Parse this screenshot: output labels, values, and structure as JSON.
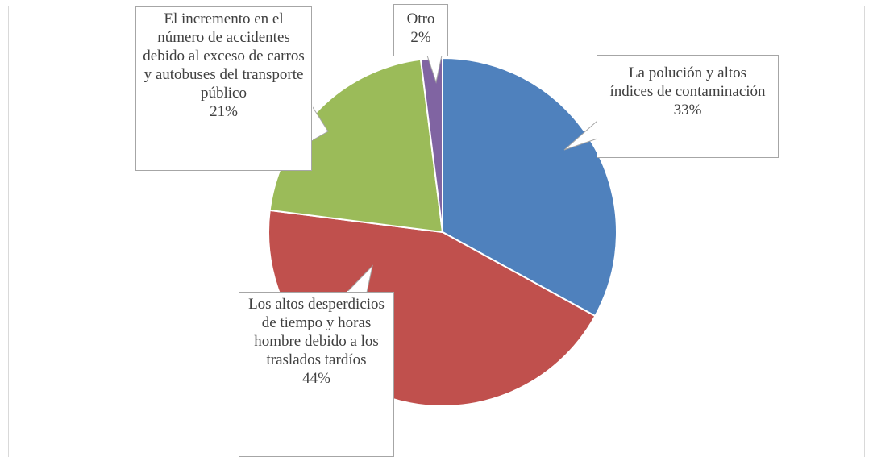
{
  "chart_data": {
    "type": "pie",
    "categories": [
      "La polución y altos índices de contaminación",
      "Los altos desperdicios de tiempo y horas hombre debido a los traslados tardíos",
      "El incremento en el número de accidentes debido al exceso de carros y autobuses del transporte público",
      "Otro"
    ],
    "values": [
      33,
      44,
      21,
      2
    ],
    "value_labels": [
      "33%",
      "44%",
      "21%",
      "2%"
    ],
    "colors": [
      "#4f81bd",
      "#c0504d",
      "#9bbb59",
      "#8064a2"
    ]
  }
}
